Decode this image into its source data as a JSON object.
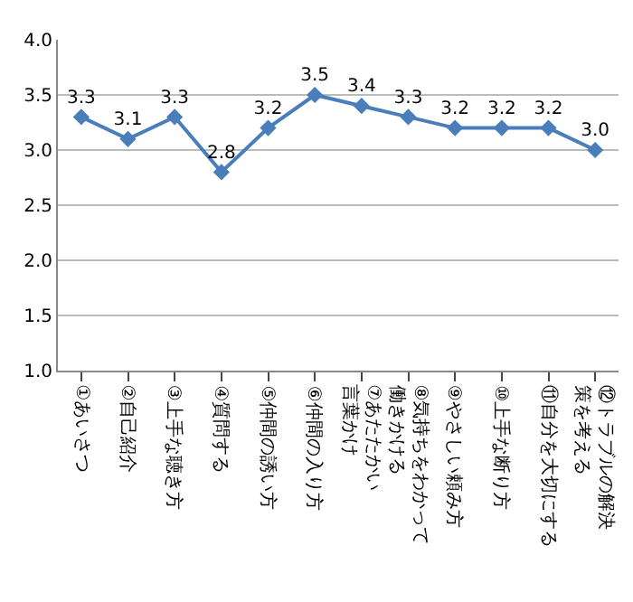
{
  "chart_data": {
    "type": "line",
    "categories": [
      "①あいさつ",
      "②自己紹介",
      "③上手な聴き方",
      "④質問する",
      "⑤仲間の誘い方",
      "⑥仲間の入り方",
      "⑦あたたかい言葉かけ",
      "⑧気持ちをわかって働きかける",
      "⑨やさしい頼み方",
      "⑩上手な断り方",
      "⑪自分を大切にする",
      "⑫トラブルの解決策を考える"
    ],
    "series": [
      {
        "color": "#4a7ebb",
        "values": [
          3.3,
          3.1,
          3.3,
          2.8,
          3.2,
          3.5,
          3.4,
          3.3,
          3.2,
          3.2,
          3.2,
          3.0
        ],
        "value_labels": [
          "3.3",
          "3.1",
          "3.3",
          "2.8",
          "3.2",
          "3.5",
          "3.4",
          "3.3",
          "3.2",
          "3.2",
          "3.2",
          "3.0"
        ]
      }
    ],
    "ylim": [
      1.0,
      4.0
    ],
    "yticks": [
      {
        "value": 1.0,
        "label": "1.0"
      },
      {
        "value": 1.5,
        "label": "1.5"
      },
      {
        "value": 2.0,
        "label": "2.0"
      },
      {
        "value": 2.5,
        "label": "2.5"
      },
      {
        "value": 3.0,
        "label": "3.0"
      },
      {
        "value": 3.5,
        "label": "3.5"
      },
      {
        "value": 4.0,
        "label": "4.0"
      }
    ],
    "grid": "y",
    "marker": "diamond",
    "line_style": "solid",
    "data_labels": true
  }
}
